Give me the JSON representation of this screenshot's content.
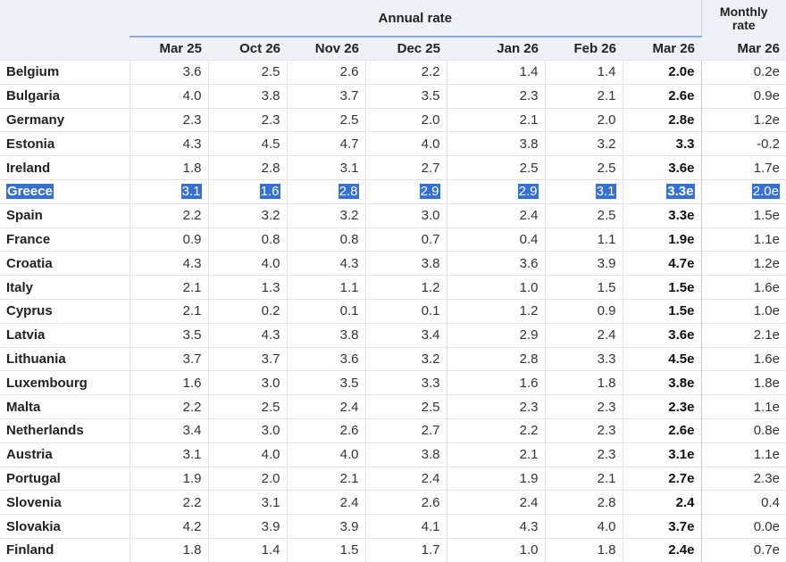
{
  "header": {
    "annual": "Annual rate",
    "monthly": "Monthly rate",
    "columns": [
      "Mar 25",
      "Oct 26",
      "Nov 26",
      "Dec 25",
      "Jan 26",
      "Feb 26",
      "Mar 26",
      "Mar 26"
    ]
  },
  "rows": [
    {
      "country": "Belgium",
      "values": [
        "3.6",
        "2.5",
        "2.6",
        "2.2",
        "1.4",
        "1.4",
        "2.0e",
        "0.2e"
      ]
    },
    {
      "country": "Bulgaria",
      "values": [
        "4.0",
        "3.8",
        "3.7",
        "3.5",
        "2.3",
        "2.1",
        "2.6e",
        "0.9e"
      ]
    },
    {
      "country": "Germany",
      "values": [
        "2.3",
        "2.3",
        "2.5",
        "2.0",
        "2.1",
        "2.0",
        "2.8e",
        "1.2e"
      ]
    },
    {
      "country": "Estonia",
      "values": [
        "4.3",
        "4.5",
        "4.7",
        "4.0",
        "3.8",
        "3.2",
        "3.3",
        "-0.2"
      ]
    },
    {
      "country": "Ireland",
      "values": [
        "1.8",
        "2.8",
        "3.1",
        "2.7",
        "2.5",
        "2.5",
        "3.6e",
        "1.7e"
      ]
    },
    {
      "country": "Greece",
      "values": [
        "3.1",
        "1.6",
        "2.8",
        "2.9",
        "2.9",
        "3.1",
        "3.3e",
        "2.0e"
      ]
    },
    {
      "country": "Spain",
      "values": [
        "2.2",
        "3.2",
        "3.2",
        "3.0",
        "2.4",
        "2.5",
        "3.3e",
        "1.5e"
      ]
    },
    {
      "country": "France",
      "values": [
        "0.9",
        "0.8",
        "0.8",
        "0.7",
        "0.4",
        "1.1",
        "1.9e",
        "1.1e"
      ]
    },
    {
      "country": "Croatia",
      "values": [
        "4.3",
        "4.0",
        "4.3",
        "3.8",
        "3.6",
        "3.9",
        "4.7e",
        "1.2e"
      ]
    },
    {
      "country": "Italy",
      "values": [
        "2.1",
        "1.3",
        "1.1",
        "1.2",
        "1.0",
        "1.5",
        "1.5e",
        "1.6e"
      ]
    },
    {
      "country": "Cyprus",
      "values": [
        "2.1",
        "0.2",
        "0.1",
        "0.1",
        "1.2",
        "0.9",
        "1.5e",
        "1.0e"
      ]
    },
    {
      "country": "Latvia",
      "values": [
        "3.5",
        "4.3",
        "3.8",
        "3.4",
        "2.9",
        "2.4",
        "3.6e",
        "2.1e"
      ]
    },
    {
      "country": "Lithuania",
      "values": [
        "3.7",
        "3.7",
        "3.6",
        "3.2",
        "2.8",
        "3.3",
        "4.5e",
        "1.6e"
      ]
    },
    {
      "country": "Luxembourg",
      "values": [
        "1.6",
        "3.0",
        "3.5",
        "3.3",
        "1.6",
        "1.8",
        "3.8e",
        "1.8e"
      ]
    },
    {
      "country": "Malta",
      "values": [
        "2.2",
        "2.5",
        "2.4",
        "2.5",
        "2.3",
        "2.3",
        "2.3e",
        "1.1e"
      ]
    },
    {
      "country": "Netherlands",
      "values": [
        "3.4",
        "3.0",
        "2.6",
        "2.7",
        "2.2",
        "2.3",
        "2.6e",
        "0.8e"
      ]
    },
    {
      "country": "Austria",
      "values": [
        "3.1",
        "4.0",
        "4.0",
        "3.8",
        "2.1",
        "2.3",
        "3.1e",
        "1.1e"
      ]
    },
    {
      "country": "Portugal",
      "values": [
        "1.9",
        "2.0",
        "2.1",
        "2.4",
        "1.9",
        "2.1",
        "2.7e",
        "2.3e"
      ]
    },
    {
      "country": "Slovenia",
      "values": [
        "2.2",
        "3.1",
        "2.4",
        "2.6",
        "2.4",
        "2.8",
        "2.4",
        "0.4"
      ]
    },
    {
      "country": "Slovakia",
      "values": [
        "4.2",
        "3.9",
        "3.9",
        "4.1",
        "4.3",
        "4.0",
        "3.7e",
        "0.0e"
      ]
    },
    {
      "country": "Finland",
      "values": [
        "1.8",
        "1.4",
        "1.5",
        "1.7",
        "1.0",
        "1.8",
        "2.4e",
        "0.7e"
      ]
    }
  ]
}
